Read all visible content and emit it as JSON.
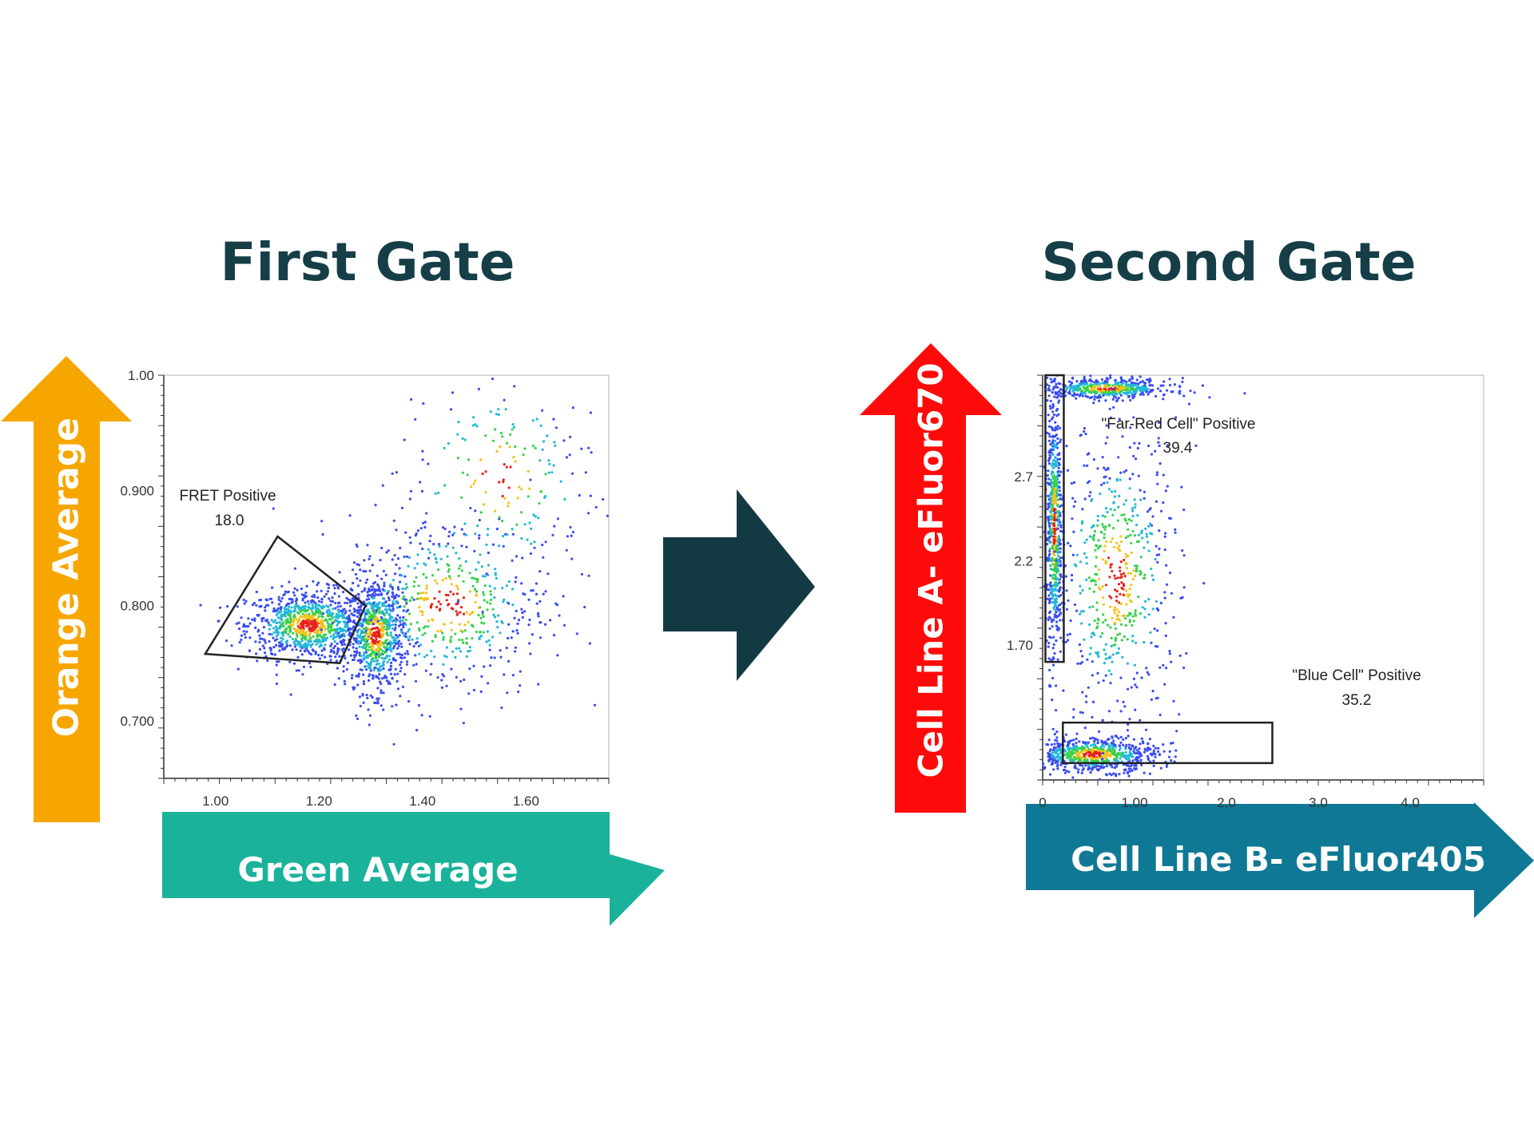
{
  "colors": {
    "title": "#163e47",
    "orange_arrow": "#f7a600",
    "teal_arrow": "#1ab29a",
    "red_arrow": "#ff0a0a",
    "blue_arrow": "#0e7895",
    "middle_arrow": "#133a42",
    "dots": "#3a4cf0"
  },
  "titles": {
    "left": "First Gate",
    "right": "Second Gate"
  },
  "arrows": {
    "left_y": "Orange Average",
    "left_x": "Green Average",
    "right_y": "Cell Line A- eFluor670",
    "right_x": "Cell Line B- eFluor405"
  },
  "chart_data": [
    {
      "type": "scatter",
      "title": "First Gate",
      "xlabel": "Green Average",
      "ylabel": "Orange Average",
      "xlim": [
        0.9,
        1.76
      ],
      "ylim": [
        0.65,
        1.0
      ],
      "x_ticks": [
        "1.00",
        "1.20",
        "1.40",
        "1.60"
      ],
      "x_tick_values": [
        1.0,
        1.2,
        1.4,
        1.6
      ],
      "y_ticks": [
        "1.00",
        "0.900",
        "0.800",
        "0.700"
      ],
      "y_tick_values": [
        1.0,
        0.9,
        0.8,
        0.7
      ],
      "clusters": [
        {
          "name": "",
          "cx": 1.18,
          "cy": 0.783,
          "sx": 0.06,
          "sy": 0.015,
          "n": 900
        },
        {
          "name": "",
          "cx": 1.31,
          "cy": 0.775,
          "sx": 0.028,
          "sy": 0.025,
          "n": 700
        },
        {
          "name": "",
          "cx": 1.45,
          "cy": 0.8,
          "sx": 0.1,
          "sy": 0.04,
          "n": 500
        },
        {
          "name": "",
          "cx": 1.55,
          "cy": 0.91,
          "sx": 0.1,
          "sy": 0.05,
          "n": 200
        }
      ],
      "gates": [
        {
          "name": "FRET Positive",
          "value": "18.0",
          "shape": "polygon",
          "points": [
            [
              1.12,
              0.86
            ],
            [
              1.29,
              0.8
            ],
            [
              1.24,
              0.75
            ],
            [
              0.98,
              0.758
            ]
          ]
        }
      ]
    },
    {
      "type": "scatter",
      "title": "Second Gate",
      "xlabel": "Cell Line B- eFluor405",
      "ylabel": "Cell Line A- eFluor670",
      "xlim": [
        0,
        4.8
      ],
      "ylim": [
        0.9,
        3.3
      ],
      "x_ticks": [
        "0",
        "1.00",
        "2.0",
        "3.0",
        "4.0"
      ],
      "x_tick_values": [
        0,
        1,
        2,
        3,
        4
      ],
      "y_ticks": [
        "2.7",
        "2.2",
        "1.70"
      ],
      "y_tick_values": [
        2.7,
        2.2,
        1.7
      ],
      "clusters": [
        {
          "name": "",
          "cx": 0.13,
          "cy": 2.4,
          "sx": 0.04,
          "sy": 0.4,
          "n": 600
        },
        {
          "name": "",
          "cx": 0.7,
          "cy": 3.22,
          "sx": 0.35,
          "sy": 0.03,
          "n": 500
        },
        {
          "name": "",
          "cx": 0.55,
          "cy": 1.05,
          "sx": 0.35,
          "sy": 0.05,
          "n": 700
        },
        {
          "name": "",
          "cx": 0.8,
          "cy": 2.1,
          "sx": 0.35,
          "sy": 0.45,
          "n": 600
        }
      ],
      "gates": [
        {
          "name": "\"Far-Red Cell\" Positive",
          "value": "39.4",
          "shape": "rect",
          "points": [
            [
              0.03,
              1.6
            ],
            [
              0.23,
              3.3
            ]
          ]
        },
        {
          "name": "\"Blue Cell\" Positive",
          "value": "35.2",
          "shape": "rect",
          "points": [
            [
              0.22,
              1.0
            ],
            [
              2.5,
              1.24
            ]
          ]
        }
      ]
    }
  ]
}
